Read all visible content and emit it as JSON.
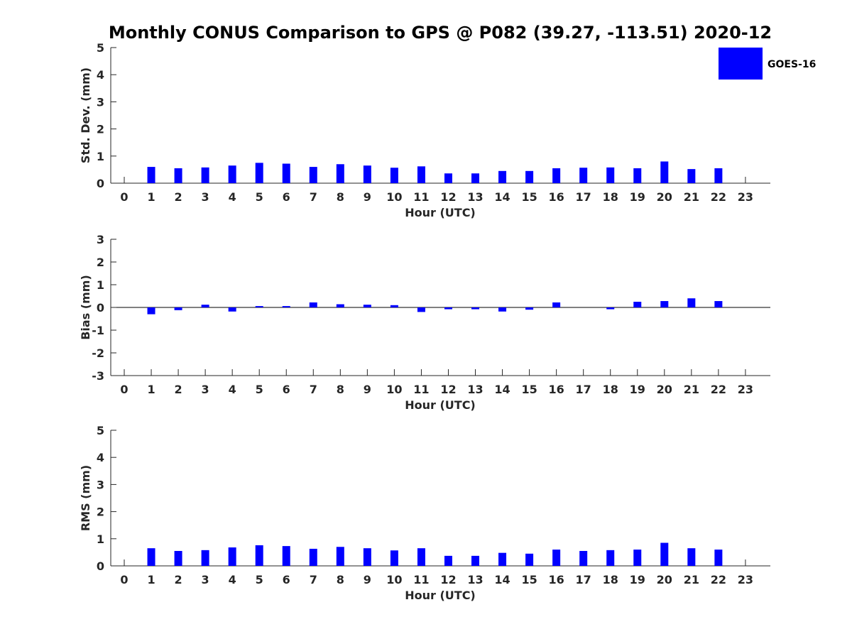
{
  "title": "Monthly CONUS Comparison to GPS @ P082 (39.27, -113.51) 2020-12",
  "legend": {
    "label": "GOES-16",
    "color": "#0000ff",
    "placement": "top-right"
  },
  "chart_data": [
    {
      "type": "bar",
      "xlabel": "Hour (UTC)",
      "ylabel": "Std. Dev. (mm)",
      "ylim": [
        0,
        5
      ],
      "yticks": [
        0,
        1,
        2,
        3,
        4,
        5
      ],
      "categories": [
        "0",
        "1",
        "2",
        "3",
        "4",
        "5",
        "6",
        "7",
        "8",
        "9",
        "10",
        "11",
        "12",
        "13",
        "14",
        "15",
        "16",
        "17",
        "18",
        "19",
        "20",
        "21",
        "22",
        "23"
      ],
      "series": [
        {
          "name": "GOES-16",
          "values": [
            null,
            0.6,
            0.55,
            0.58,
            0.65,
            0.75,
            0.72,
            0.6,
            0.7,
            0.65,
            0.57,
            0.62,
            0.36,
            0.36,
            0.45,
            0.45,
            0.55,
            0.57,
            0.58,
            0.55,
            0.8,
            0.52,
            0.55,
            null
          ]
        }
      ]
    },
    {
      "type": "bar",
      "xlabel": "Hour (UTC)",
      "ylabel": "Bias (mm)",
      "ylim": [
        -3,
        3
      ],
      "yticks": [
        -3,
        -2,
        -1,
        0,
        1,
        2,
        3
      ],
      "categories": [
        "0",
        "1",
        "2",
        "3",
        "4",
        "5",
        "6",
        "7",
        "8",
        "9",
        "10",
        "11",
        "12",
        "13",
        "14",
        "15",
        "16",
        "17",
        "18",
        "19",
        "20",
        "21",
        "22",
        "23"
      ],
      "series": [
        {
          "name": "GOES-16",
          "values": [
            null,
            -0.3,
            -0.12,
            0.12,
            -0.18,
            0.06,
            0.06,
            0.22,
            0.14,
            0.12,
            0.1,
            -0.2,
            -0.08,
            -0.08,
            -0.18,
            -0.1,
            0.22,
            0.0,
            -0.08,
            0.25,
            0.28,
            0.4,
            0.28,
            null
          ]
        }
      ]
    },
    {
      "type": "bar",
      "xlabel": "Hour (UTC)",
      "ylabel": "RMS (mm)",
      "ylim": [
        0,
        5
      ],
      "yticks": [
        0,
        1,
        2,
        3,
        4,
        5
      ],
      "categories": [
        "0",
        "1",
        "2",
        "3",
        "4",
        "5",
        "6",
        "7",
        "8",
        "9",
        "10",
        "11",
        "12",
        "13",
        "14",
        "15",
        "16",
        "17",
        "18",
        "19",
        "20",
        "21",
        "22",
        "23"
      ],
      "series": [
        {
          "name": "GOES-16",
          "values": [
            null,
            0.65,
            0.55,
            0.58,
            0.68,
            0.76,
            0.73,
            0.63,
            0.7,
            0.65,
            0.57,
            0.65,
            0.37,
            0.37,
            0.48,
            0.45,
            0.6,
            0.55,
            0.58,
            0.6,
            0.85,
            0.65,
            0.6,
            null
          ]
        }
      ]
    }
  ]
}
